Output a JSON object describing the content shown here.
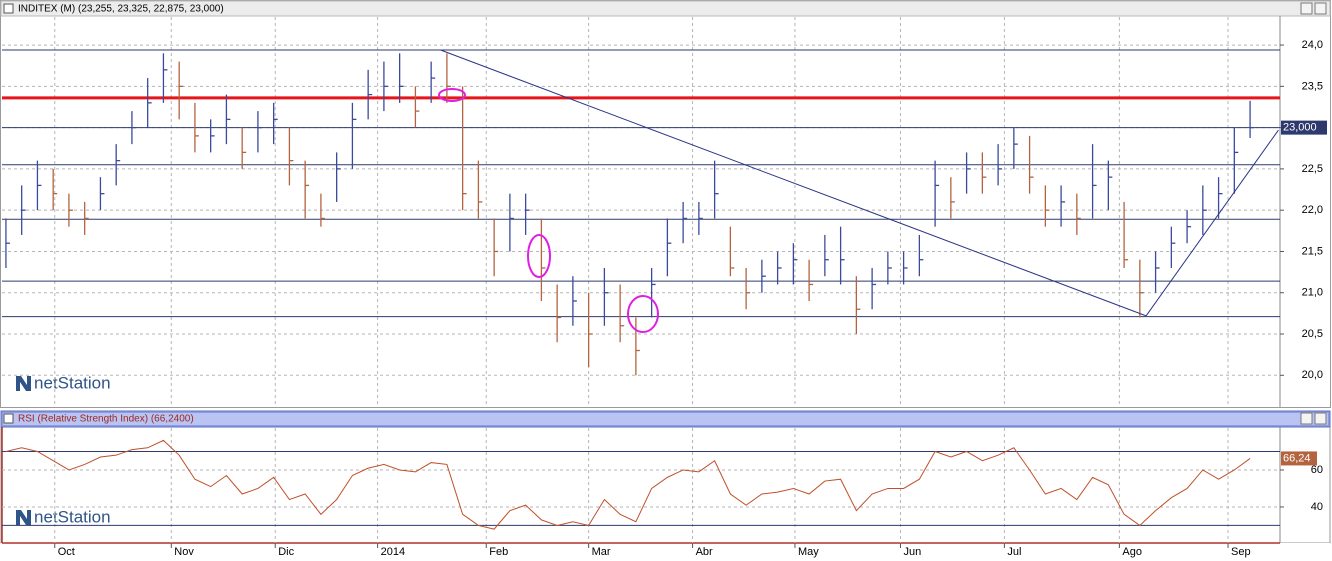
{
  "chart_data": [
    {
      "type": "ohlc",
      "title": "INDITEX (M) (23,255, 23,325, 22,875, 23,000)",
      "watermark": "netStation",
      "up_color": "#3b4a9c",
      "down_color": "#b3643f",
      "xlim": [
        -0.25,
        80.9
      ],
      "xticks": [
        3.1,
        10.5,
        17.1,
        23.6,
        30.5,
        37.0,
        43.6,
        50.1,
        56.8,
        63.4,
        70.7,
        77.6
      ],
      "ylim": [
        19.64,
        24.34
      ],
      "yticks": [
        {
          "value": 20,
          "label": "20,0"
        },
        {
          "value": 20.5,
          "label": "20,5"
        },
        {
          "value": 21,
          "label": "21,0"
        },
        {
          "value": 21.5,
          "label": "21,5"
        },
        {
          "value": 22,
          "label": "22,0"
        },
        {
          "value": 22.5,
          "label": "22,5"
        },
        {
          "value": 23,
          "label": "23,0"
        },
        {
          "value": 23.5,
          "label": "23,5"
        },
        {
          "value": 24,
          "label": "24,0"
        }
      ],
      "grid": true,
      "high": [
        21.9,
        22.3,
        22.6,
        22.5,
        22.2,
        22.1,
        22.4,
        22.8,
        23.2,
        23.6,
        23.9,
        23.8,
        23.3,
        23.1,
        23.4,
        23.0,
        23.2,
        23.3,
        23.0,
        22.6,
        22.2,
        22.7,
        23.3,
        23.7,
        23.8,
        23.9,
        23.5,
        23.8,
        23.9,
        23.5,
        22.6,
        21.9,
        22.2,
        22.2,
        21.9,
        21.1,
        21.2,
        21.0,
        21.3,
        21.1,
        20.7,
        21.3,
        21.9,
        22.1,
        22.1,
        22.6,
        21.8,
        21.3,
        21.4,
        21.5,
        21.6,
        21.4,
        21.7,
        21.8,
        21.2,
        21.3,
        21.5,
        21.5,
        21.7,
        22.6,
        22.4,
        22.7,
        22.7,
        22.8,
        23.0,
        22.9,
        22.3,
        22.3,
        22.2,
        22.8,
        22.6,
        22.1,
        21.4,
        21.5,
        21.8,
        22.0,
        22.3,
        22.4,
        23.0,
        23.325
      ],
      "low": [
        21.3,
        21.7,
        22.0,
        22.0,
        21.8,
        21.7,
        22.0,
        22.3,
        22.8,
        23.0,
        23.3,
        23.1,
        22.7,
        22.7,
        22.8,
        22.5,
        22.7,
        22.8,
        22.3,
        21.9,
        21.8,
        22.1,
        22.5,
        23.1,
        23.2,
        23.3,
        23.0,
        23.3,
        23.3,
        22.0,
        21.9,
        21.2,
        21.5,
        21.7,
        20.9,
        20.4,
        20.6,
        20.1,
        20.6,
        20.4,
        20.0,
        20.7,
        21.2,
        21.6,
        21.7,
        21.9,
        21.2,
        20.8,
        21.0,
        21.1,
        21.1,
        20.9,
        21.2,
        21.1,
        20.5,
        20.8,
        21.1,
        21.1,
        21.2,
        21.8,
        21.9,
        22.2,
        22.2,
        22.3,
        22.5,
        22.2,
        21.8,
        21.8,
        21.7,
        21.9,
        22.0,
        21.3,
        20.7,
        21.0,
        21.3,
        21.6,
        21.7,
        21.9,
        22.2,
        22.875
      ],
      "close": [
        21.6,
        22.0,
        22.3,
        22.2,
        22.0,
        21.9,
        22.2,
        22.6,
        23.0,
        23.3,
        23.7,
        23.5,
        22.9,
        22.9,
        23.1,
        22.7,
        23.0,
        23.1,
        22.6,
        22.3,
        21.9,
        22.5,
        23.1,
        23.4,
        23.5,
        23.5,
        23.2,
        23.6,
        23.5,
        22.2,
        22.1,
        21.5,
        21.9,
        22.0,
        21.3,
        20.7,
        20.9,
        20.5,
        21.0,
        20.6,
        20.3,
        21.1,
        21.6,
        21.9,
        21.9,
        22.2,
        21.3,
        21.0,
        21.2,
        21.3,
        21.4,
        21.1,
        21.4,
        21.4,
        20.8,
        21.1,
        21.3,
        21.3,
        21.4,
        22.3,
        22.1,
        22.5,
        22.4,
        22.5,
        22.8,
        22.4,
        22.0,
        22.1,
        21.9,
        22.3,
        22.4,
        21.4,
        21.0,
        21.3,
        21.6,
        21.8,
        22.0,
        22.2,
        22.7,
        23.0
      ],
      "levels": [
        {
          "value": 23.36,
          "color": "#e8141a"
        },
        {
          "value": 23.94,
          "color": "#2e3a6e"
        },
        {
          "value": 23.0,
          "color": "#2e3a6e"
        },
        {
          "value": 22.55,
          "color": "#2e3a6e"
        },
        {
          "value": 21.89,
          "color": "#2e3a6e"
        },
        {
          "value": 21.14,
          "color": "#2e3a6e"
        },
        {
          "value": 20.71,
          "color": "#2e3a6e"
        }
      ],
      "trendlines": [
        {
          "x": [
            27.6,
            72.4
          ],
          "y": [
            23.94,
            20.72
          ],
          "color": "#2a3585"
        },
        {
          "x": [
            72.4,
            80.8
          ],
          "y": [
            20.72,
            22.97
          ],
          "color": "#2a3585"
        }
      ],
      "last_price": {
        "value": 23.0,
        "label": "23,000"
      }
    },
    {
      "type": "line",
      "title": "RSI (Relative Strength Index) (66,2400)",
      "watermark": "netStation",
      "color": "#c0502a",
      "xlim": [
        -0.25,
        80.9
      ],
      "xticks": [
        {
          "value": 3.1,
          "label": "Oct"
        },
        {
          "value": 10.5,
          "label": "Nov"
        },
        {
          "value": 17.1,
          "label": "Dic"
        },
        {
          "value": 23.6,
          "label": "2014"
        },
        {
          "value": 30.5,
          "label": "Feb"
        },
        {
          "value": 37.0,
          "label": "Mar"
        },
        {
          "value": 43.6,
          "label": "Abr"
        },
        {
          "value": 50.1,
          "label": "May"
        },
        {
          "value": 56.8,
          "label": "Jun"
        },
        {
          "value": 63.4,
          "label": "Jul"
        },
        {
          "value": 70.7,
          "label": "Ago"
        },
        {
          "value": 77.6,
          "label": "Sep"
        }
      ],
      "ylim": [
        20.5,
        82.7
      ],
      "yticks": [
        40,
        60
      ],
      "grid": true,
      "values": [
        70,
        72,
        70,
        65,
        60,
        63,
        67,
        68,
        71,
        72,
        76,
        68,
        55,
        51,
        57,
        47,
        50,
        56,
        44,
        47,
        36,
        44,
        57,
        61,
        63,
        60,
        59,
        64,
        63,
        36,
        30,
        28,
        38,
        41,
        33,
        30,
        32,
        30,
        44,
        36,
        32,
        50,
        56,
        60,
        59,
        65,
        47,
        41,
        47,
        48,
        50,
        47,
        54,
        55,
        38,
        47,
        50,
        50,
        55,
        70,
        67,
        70,
        65,
        68,
        72,
        60,
        47,
        50,
        44,
        56,
        52,
        36,
        30,
        38,
        45,
        50,
        60,
        55,
        60,
        66.24
      ],
      "levels": [
        {
          "value": 70,
          "color": "#2e3a6e"
        },
        {
          "value": 30,
          "color": "#2e3a6e"
        }
      ],
      "last_value": {
        "value": 66.24,
        "label": "66,24"
      }
    }
  ]
}
